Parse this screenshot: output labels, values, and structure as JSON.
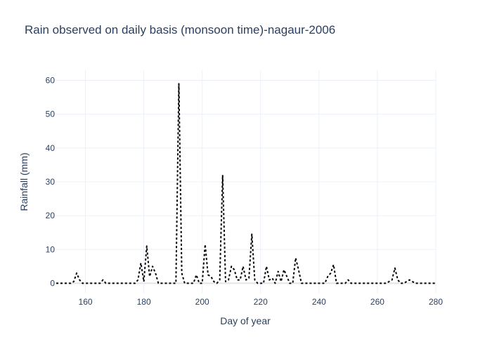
{
  "chart_data": {
    "type": "line",
    "title": "Rain observed on daily basis (monsoon time)-nagaur-2006",
    "xlabel": "Day of year",
    "ylabel": "Rainfall (mm)",
    "xlim": [
      150,
      280
    ],
    "ylim": [
      -3,
      63
    ],
    "xticks": [
      160,
      180,
      200,
      220,
      240,
      260,
      280
    ],
    "yticks": [
      0,
      10,
      20,
      30,
      40,
      50,
      60
    ],
    "grid": true,
    "line_style": "dotted",
    "line_color": "#000000",
    "series": [
      {
        "x": [
          150,
          151,
          152,
          153,
          154,
          155,
          156,
          157,
          158,
          159,
          160,
          161,
          162,
          163,
          164,
          165,
          166,
          167,
          168,
          169,
          170,
          171,
          172,
          173,
          174,
          175,
          176,
          177,
          178,
          179,
          180,
          181,
          182,
          183,
          184,
          185,
          186,
          187,
          188,
          189,
          190,
          191,
          192,
          193,
          194,
          195,
          196,
          197,
          198,
          199,
          200,
          201,
          202,
          203,
          204,
          205,
          206,
          207,
          208,
          209,
          210,
          211,
          212,
          213,
          214,
          215,
          216,
          217,
          218,
          219,
          220,
          221,
          222,
          223,
          224,
          225,
          226,
          227,
          228,
          229,
          230,
          231,
          232,
          233,
          234,
          235,
          236,
          237,
          238,
          239,
          240,
          241,
          242,
          243,
          244,
          245,
          246,
          247,
          248,
          249,
          250,
          251,
          252,
          253,
          254,
          255,
          256,
          257,
          258,
          259,
          260,
          261,
          262,
          263,
          264,
          265,
          266,
          267,
          268,
          269,
          270,
          271,
          272,
          273,
          274,
          275,
          276,
          277,
          278,
          279,
          280
        ],
        "y": [
          0,
          0,
          0,
          0,
          0,
          0,
          0.5,
          3,
          1,
          0,
          0,
          0,
          0,
          0,
          0,
          0,
          1,
          0,
          0,
          0,
          0,
          0,
          0,
          0,
          0,
          0,
          0,
          0,
          1,
          6,
          0.5,
          11,
          2,
          5,
          3,
          0,
          0,
          0,
          0,
          0,
          0,
          0,
          59,
          3,
          0,
          0,
          0,
          0,
          2.5,
          0,
          0,
          11.5,
          2.5,
          2,
          0.5,
          0,
          1,
          32,
          0.5,
          1,
          5,
          4,
          1,
          1,
          5,
          1,
          1.5,
          14.5,
          1,
          0,
          0,
          0,
          5,
          1,
          1.5,
          0,
          3.5,
          0.5,
          4,
          2,
          0,
          0,
          7.5,
          4,
          0,
          0,
          0,
          0,
          0,
          0,
          0,
          0,
          0,
          2,
          3,
          5.5,
          0,
          0,
          0,
          0,
          1,
          0,
          0,
          0,
          0,
          0,
          0,
          0,
          0,
          0,
          0,
          0,
          0,
          0,
          0.5,
          1,
          4.5,
          1,
          0,
          0,
          0.5,
          1,
          0.5,
          0,
          0,
          0,
          0,
          0,
          0,
          0,
          0
        ]
      }
    ]
  }
}
